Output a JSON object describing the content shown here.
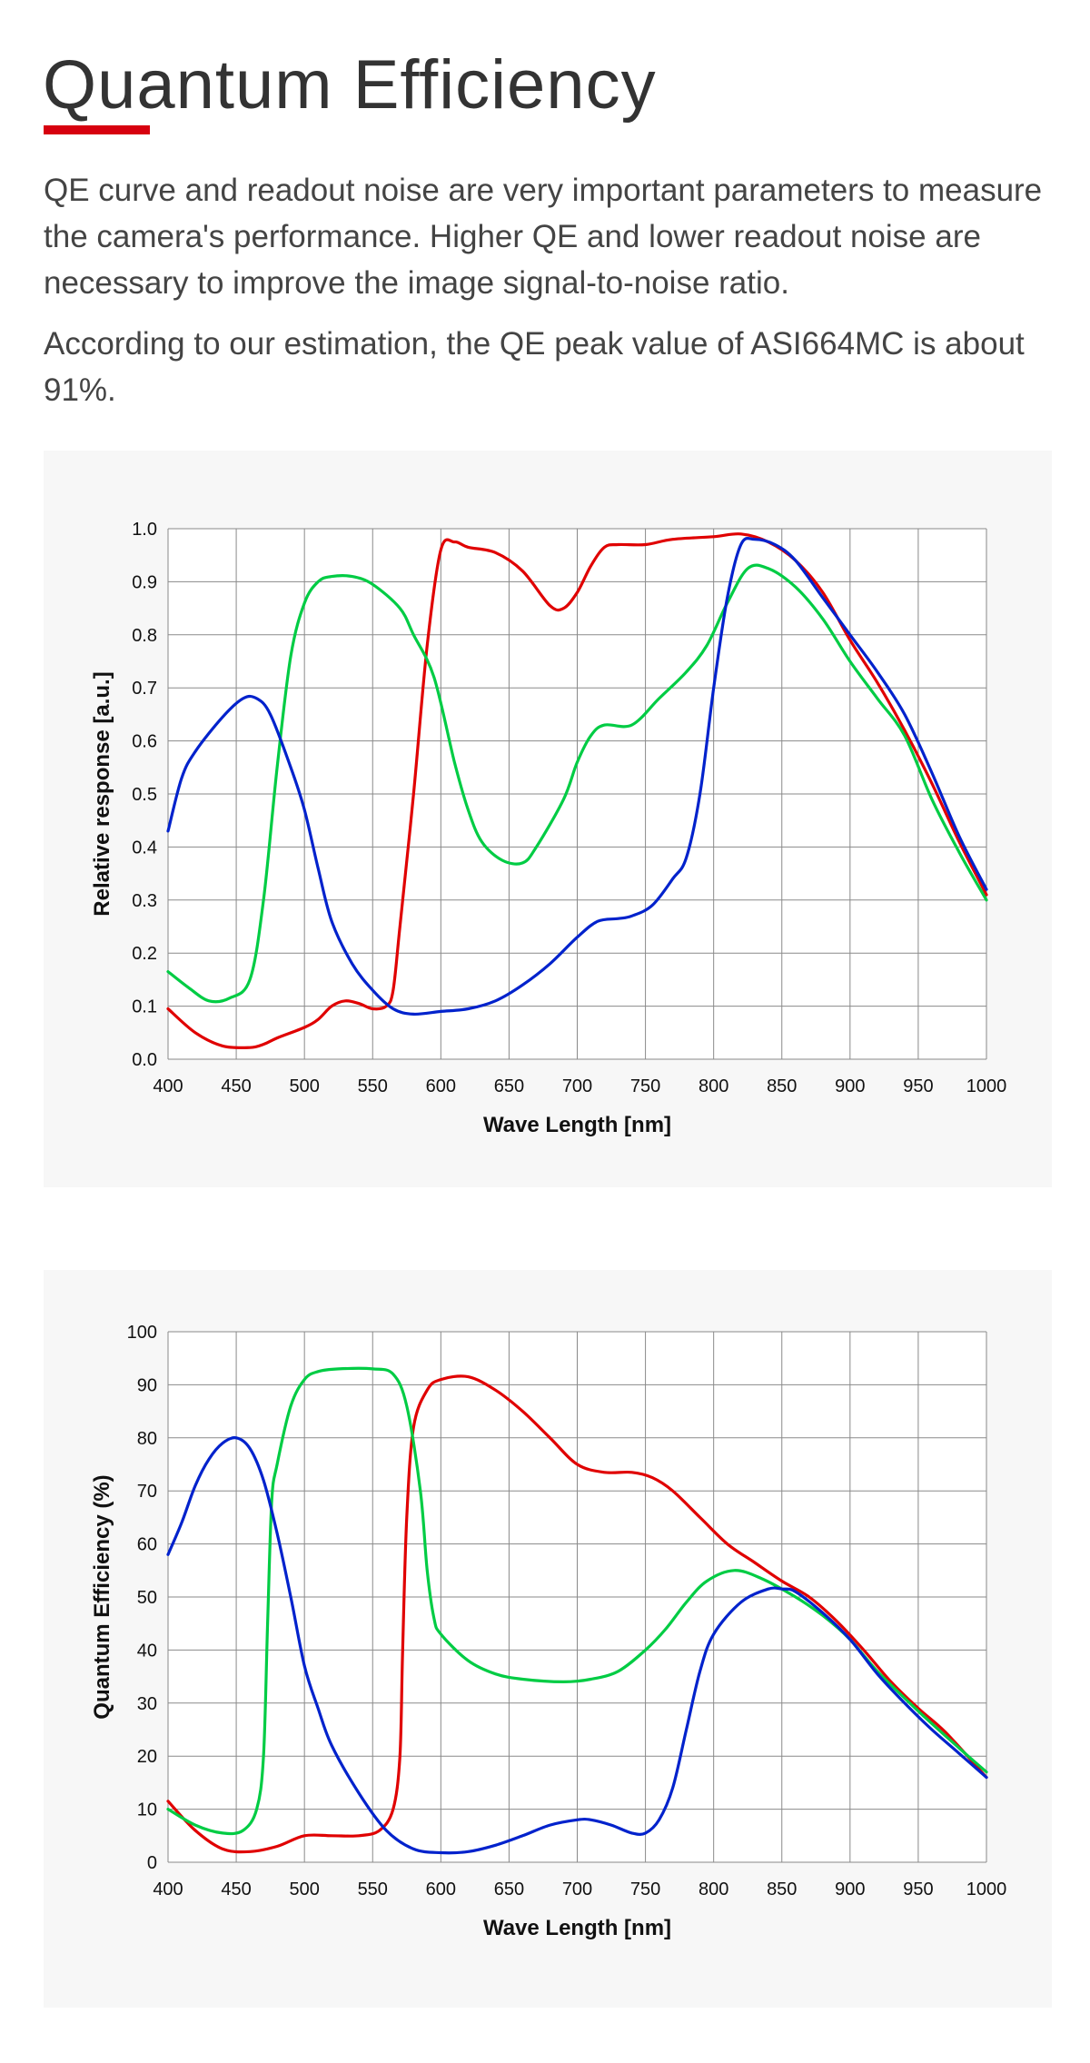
{
  "header": {
    "title": "Quantum Efficiency",
    "accent_color": "#d7000f"
  },
  "paragraphs": [
    "QE curve and readout noise are very important parameters to measure the camera's performance. Higher QE and lower readout noise are necessary to improve the image signal-to-noise ratio.",
    "According to our estimation, the QE peak value of ASI664MC is about 91%."
  ],
  "chart_data": [
    {
      "type": "line",
      "title": "",
      "xlabel": "Wave Length [nm]",
      "ylabel": "Relative response  [a.u.]",
      "xlim": [
        400,
        1000
      ],
      "ylim": [
        0,
        1.0
      ],
      "xticks": [
        "400",
        "450",
        "500",
        "550",
        "600",
        "650",
        "700",
        "750",
        "800",
        "850",
        "900",
        "950",
        "1000"
      ],
      "yticks": [
        "0.0",
        "0.1",
        "0.2",
        "0.3",
        "0.4",
        "0.5",
        "0.6",
        "0.7",
        "0.8",
        "0.9",
        "1.0"
      ],
      "grid": true,
      "legend": "none",
      "series": [
        {
          "color": "#e00000",
          "points": [
            [
              400,
              0.095
            ],
            [
              420,
              0.05
            ],
            [
              440,
              0.025
            ],
            [
              460,
              0.022
            ],
            [
              470,
              0.028
            ],
            [
              480,
              0.04
            ],
            [
              500,
              0.06
            ],
            [
              510,
              0.075
            ],
            [
              520,
              0.1
            ],
            [
              530,
              0.11
            ],
            [
              540,
              0.105
            ],
            [
              550,
              0.095
            ],
            [
              560,
              0.1
            ],
            [
              565,
              0.13
            ],
            [
              570,
              0.25
            ],
            [
              580,
              0.5
            ],
            [
              590,
              0.78
            ],
            [
              600,
              0.96
            ],
            [
              610,
              0.975
            ],
            [
              620,
              0.965
            ],
            [
              640,
              0.955
            ],
            [
              660,
              0.92
            ],
            [
              680,
              0.855
            ],
            [
              690,
              0.85
            ],
            [
              700,
              0.88
            ],
            [
              710,
              0.93
            ],
            [
              720,
              0.965
            ],
            [
              730,
              0.97
            ],
            [
              750,
              0.97
            ],
            [
              770,
              0.98
            ],
            [
              800,
              0.985
            ],
            [
              820,
              0.99
            ],
            [
              840,
              0.975
            ],
            [
              860,
              0.94
            ],
            [
              880,
              0.88
            ],
            [
              900,
              0.79
            ],
            [
              920,
              0.71
            ],
            [
              940,
              0.62
            ],
            [
              960,
              0.52
            ],
            [
              980,
              0.41
            ],
            [
              1000,
              0.31
            ]
          ]
        },
        {
          "color": "#00cc44",
          "points": [
            [
              400,
              0.165
            ],
            [
              415,
              0.135
            ],
            [
              430,
              0.11
            ],
            [
              445,
              0.115
            ],
            [
              460,
              0.15
            ],
            [
              470,
              0.3
            ],
            [
              480,
              0.55
            ],
            [
              490,
              0.76
            ],
            [
              500,
              0.86
            ],
            [
              510,
              0.9
            ],
            [
              520,
              0.91
            ],
            [
              535,
              0.91
            ],
            [
              550,
              0.895
            ],
            [
              570,
              0.85
            ],
            [
              580,
              0.8
            ],
            [
              595,
              0.72
            ],
            [
              610,
              0.56
            ],
            [
              620,
              0.47
            ],
            [
              630,
              0.41
            ],
            [
              645,
              0.375
            ],
            [
              660,
              0.37
            ],
            [
              670,
              0.4
            ],
            [
              690,
              0.49
            ],
            [
              700,
              0.56
            ],
            [
              710,
              0.61
            ],
            [
              720,
              0.63
            ],
            [
              740,
              0.63
            ],
            [
              760,
              0.68
            ],
            [
              780,
              0.73
            ],
            [
              795,
              0.78
            ],
            [
              810,
              0.86
            ],
            [
              825,
              0.925
            ],
            [
              840,
              0.925
            ],
            [
              860,
              0.89
            ],
            [
              880,
              0.83
            ],
            [
              900,
              0.75
            ],
            [
              920,
              0.68
            ],
            [
              940,
              0.61
            ],
            [
              960,
              0.49
            ],
            [
              980,
              0.39
            ],
            [
              1000,
              0.3
            ]
          ]
        },
        {
          "color": "#0022cc",
          "points": [
            [
              400,
              0.43
            ],
            [
              410,
              0.53
            ],
            [
              420,
              0.58
            ],
            [
              440,
              0.645
            ],
            [
              455,
              0.68
            ],
            [
              465,
              0.68
            ],
            [
              475,
              0.65
            ],
            [
              490,
              0.55
            ],
            [
              500,
              0.47
            ],
            [
              510,
              0.36
            ],
            [
              520,
              0.26
            ],
            [
              535,
              0.18
            ],
            [
              550,
              0.13
            ],
            [
              565,
              0.095
            ],
            [
              580,
              0.085
            ],
            [
              600,
              0.09
            ],
            [
              620,
              0.095
            ],
            [
              640,
              0.11
            ],
            [
              660,
              0.14
            ],
            [
              680,
              0.18
            ],
            [
              700,
              0.23
            ],
            [
              715,
              0.26
            ],
            [
              730,
              0.265
            ],
            [
              740,
              0.27
            ],
            [
              755,
              0.29
            ],
            [
              770,
              0.34
            ],
            [
              780,
              0.38
            ],
            [
              790,
              0.5
            ],
            [
              800,
              0.7
            ],
            [
              810,
              0.87
            ],
            [
              820,
              0.97
            ],
            [
              830,
              0.98
            ],
            [
              845,
              0.97
            ],
            [
              860,
              0.94
            ],
            [
              880,
              0.87
            ],
            [
              900,
              0.8
            ],
            [
              920,
              0.73
            ],
            [
              940,
              0.65
            ],
            [
              960,
              0.54
            ],
            [
              980,
              0.42
            ],
            [
              1000,
              0.32
            ]
          ]
        }
      ]
    },
    {
      "type": "line",
      "title": "",
      "xlabel": "Wave Length [nm]",
      "ylabel": "Quantum Efficiency (%)",
      "xlim": [
        400,
        1000
      ],
      "ylim": [
        0,
        100
      ],
      "xticks": [
        "400",
        "450",
        "500",
        "550",
        "600",
        "650",
        "700",
        "750",
        "800",
        "850",
        "900",
        "950",
        "1000"
      ],
      "yticks": [
        "0",
        "10",
        "20",
        "30",
        "40",
        "50",
        "60",
        "70",
        "80",
        "90",
        "100"
      ],
      "grid": true,
      "legend": "none",
      "series": [
        {
          "color": "#e00000",
          "points": [
            [
              400,
              11.5
            ],
            [
              420,
              6
            ],
            [
              440,
              2.5
            ],
            [
              460,
              2
            ],
            [
              480,
              3
            ],
            [
              500,
              5
            ],
            [
              520,
              5
            ],
            [
              540,
              5
            ],
            [
              555,
              6
            ],
            [
              565,
              10
            ],
            [
              570,
              20
            ],
            [
              572,
              40
            ],
            [
              575,
              65
            ],
            [
              580,
              82
            ],
            [
              590,
              89
            ],
            [
              600,
              91
            ],
            [
              620,
              91.5
            ],
            [
              640,
              89
            ],
            [
              660,
              85
            ],
            [
              680,
              80
            ],
            [
              700,
              75
            ],
            [
              720,
              73.5
            ],
            [
              740,
              73.5
            ],
            [
              755,
              72.5
            ],
            [
              770,
              70
            ],
            [
              790,
              65
            ],
            [
              810,
              60
            ],
            [
              830,
              56.5
            ],
            [
              850,
              53
            ],
            [
              870,
              50
            ],
            [
              890,
              45.5
            ],
            [
              910,
              40
            ],
            [
              930,
              34
            ],
            [
              950,
              29
            ],
            [
              970,
              24.5
            ],
            [
              1000,
              16
            ]
          ]
        },
        {
          "color": "#00cc44",
          "points": [
            [
              400,
              10
            ],
            [
              420,
              7
            ],
            [
              440,
              5.5
            ],
            [
              455,
              6
            ],
            [
              465,
              10
            ],
            [
              470,
              20
            ],
            [
              473,
              45
            ],
            [
              476,
              68
            ],
            [
              480,
              75
            ],
            [
              490,
              86
            ],
            [
              500,
              91
            ],
            [
              510,
              92.5
            ],
            [
              525,
              93
            ],
            [
              550,
              93
            ],
            [
              565,
              92
            ],
            [
              575,
              86
            ],
            [
              585,
              70
            ],
            [
              590,
              55
            ],
            [
              595,
              46
            ],
            [
              600,
              43
            ],
            [
              620,
              38
            ],
            [
              640,
              35.5
            ],
            [
              660,
              34.5
            ],
            [
              690,
              34
            ],
            [
              710,
              34.5
            ],
            [
              730,
              36
            ],
            [
              750,
              40
            ],
            [
              765,
              44
            ],
            [
              780,
              49
            ],
            [
              795,
              53
            ],
            [
              815,
              55
            ],
            [
              835,
              53.5
            ],
            [
              860,
              50
            ],
            [
              880,
              46.5
            ],
            [
              900,
              42
            ],
            [
              920,
              36
            ],
            [
              950,
              28.5
            ],
            [
              980,
              21.5
            ],
            [
              1000,
              17
            ]
          ]
        },
        {
          "color": "#0022cc",
          "points": [
            [
              400,
              58
            ],
            [
              410,
              64
            ],
            [
              420,
              71
            ],
            [
              430,
              76
            ],
            [
              440,
              79
            ],
            [
              450,
              80
            ],
            [
              460,
              78
            ],
            [
              470,
              72
            ],
            [
              480,
              62
            ],
            [
              490,
              50
            ],
            [
              500,
              37
            ],
            [
              510,
              29
            ],
            [
              520,
              22
            ],
            [
              540,
              13
            ],
            [
              560,
              6
            ],
            [
              580,
              2.5
            ],
            [
              600,
              1.8
            ],
            [
              620,
              2
            ],
            [
              640,
              3.2
            ],
            [
              660,
              5
            ],
            [
              680,
              7
            ],
            [
              700,
              8
            ],
            [
              710,
              8
            ],
            [
              725,
              7
            ],
            [
              740,
              5.5
            ],
            [
              750,
              5.5
            ],
            [
              760,
              8
            ],
            [
              770,
              14
            ],
            [
              780,
              25
            ],
            [
              790,
              36
            ],
            [
              800,
              43
            ],
            [
              820,
              49
            ],
            [
              840,
              51.5
            ],
            [
              850,
              51.5
            ],
            [
              860,
              51
            ],
            [
              880,
              47
            ],
            [
              900,
              42
            ],
            [
              920,
              35.5
            ],
            [
              940,
              30
            ],
            [
              960,
              25
            ],
            [
              980,
              20.5
            ],
            [
              1000,
              16
            ]
          ]
        }
      ]
    }
  ]
}
